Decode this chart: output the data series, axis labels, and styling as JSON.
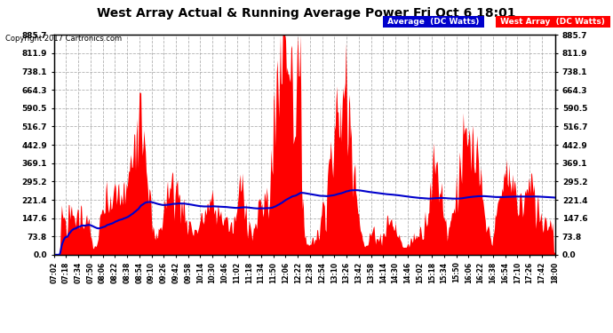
{
  "title": "West Array Actual & Running Average Power Fri Oct 6 18:01",
  "copyright": "Copyright 2017 Cartronics.com",
  "legend_avg": "Average  (DC Watts)",
  "legend_west": "West Array  (DC Watts)",
  "yticks": [
    0.0,
    73.8,
    147.6,
    221.4,
    295.2,
    369.1,
    442.9,
    516.7,
    590.5,
    664.3,
    738.1,
    811.9,
    885.7
  ],
  "ymax": 885.7,
  "ymin": 0.0,
  "plot_bg_color": "#ffffff",
  "grid_color": "#aaaaaa",
  "red_color": "#ff0000",
  "blue_color": "#0000cc",
  "start_time": "07:02",
  "end_time": "18:00",
  "time_labels": [
    "07:02",
    "07:18",
    "07:34",
    "07:50",
    "08:06",
    "08:22",
    "08:38",
    "08:54",
    "09:10",
    "09:26",
    "09:42",
    "09:58",
    "10:14",
    "10:30",
    "10:46",
    "11:02",
    "11:18",
    "11:34",
    "11:50",
    "12:06",
    "12:22",
    "12:38",
    "12:54",
    "13:10",
    "13:26",
    "13:42",
    "13:58",
    "14:14",
    "14:30",
    "14:46",
    "15:02",
    "15:18",
    "15:34",
    "15:50",
    "16:06",
    "16:22",
    "16:38",
    "16:54",
    "17:10",
    "17:26",
    "17:42",
    "18:00"
  ]
}
